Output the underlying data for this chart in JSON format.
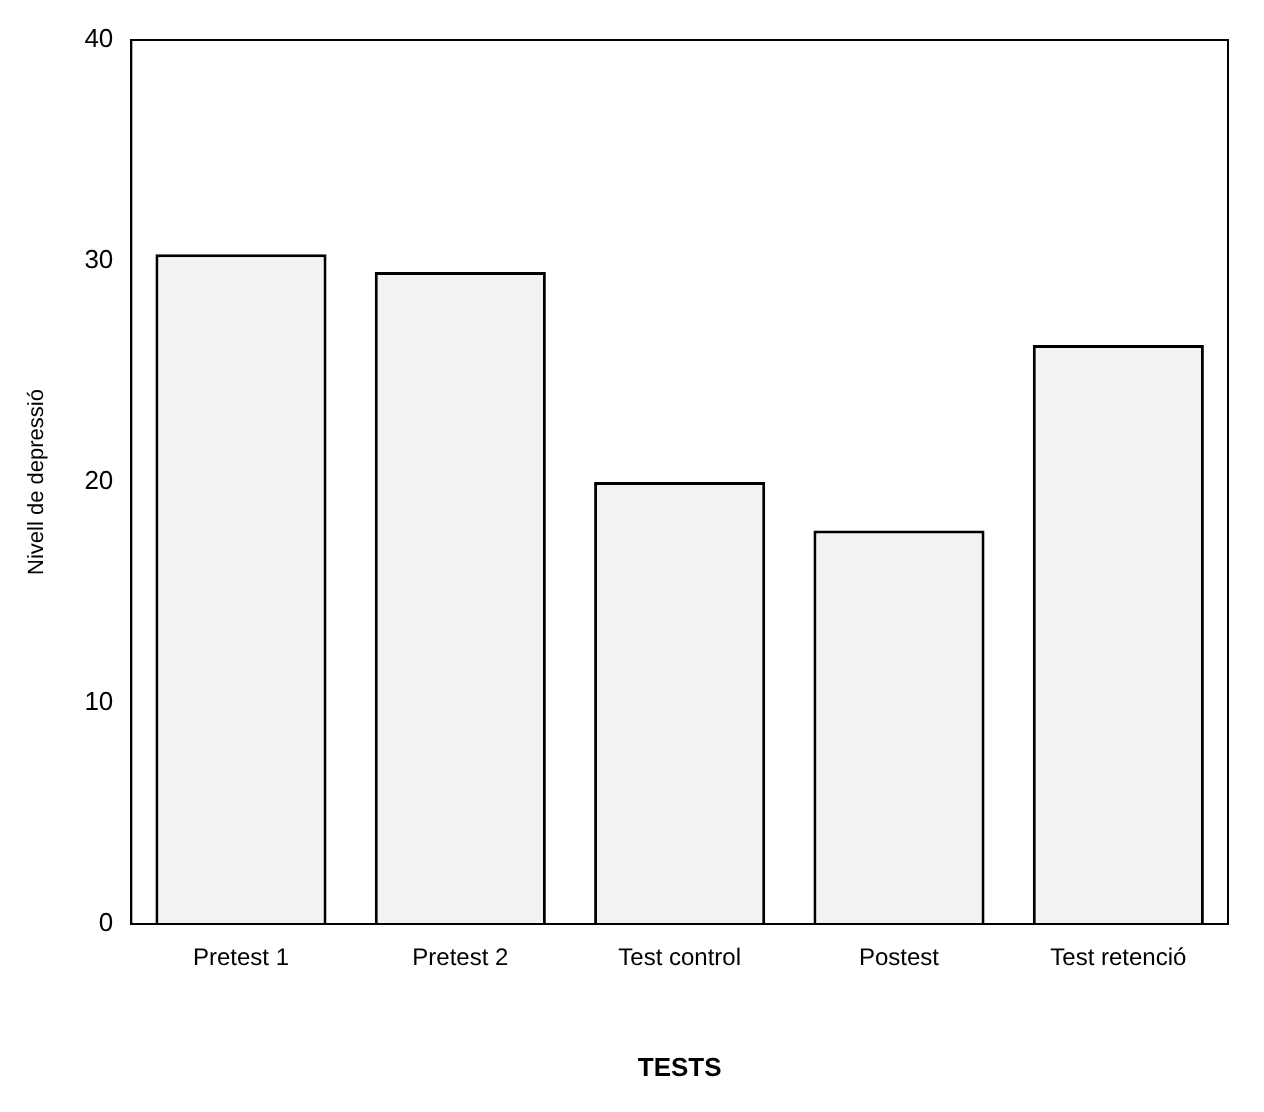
{
  "chart_data": {
    "type": "bar",
    "xlabel": "TESTS",
    "ylabel": "Nivell de depressió",
    "categories": [
      "Pretest 1",
      "Pretest 2",
      "Test control",
      "Postest",
      "Test retenció"
    ],
    "values": [
      30.3,
      29.5,
      20.0,
      17.8,
      26.2
    ],
    "color": "#f2f2f2",
    "ylim": [
      0,
      40
    ],
    "yticks": [
      0,
      10,
      20,
      30,
      40
    ],
    "grid": false,
    "legend": false
  }
}
